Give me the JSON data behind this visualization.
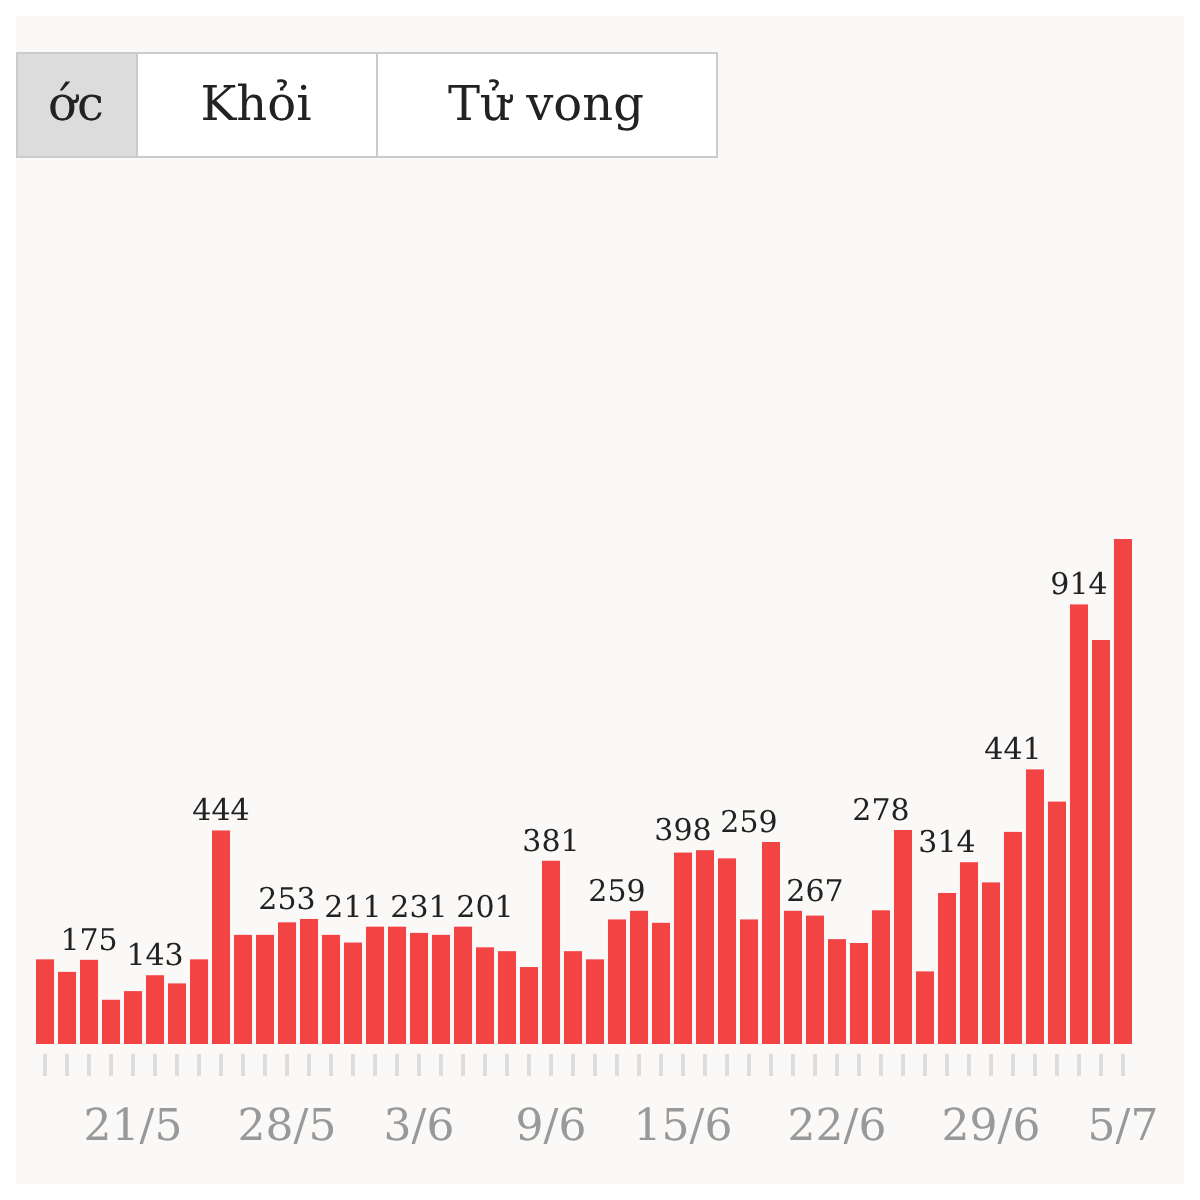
{
  "chart_data": {
    "type": "bar",
    "annotations": [
      "ớc",
      "Khỏi",
      "Tử vong"
    ],
    "categories": [
      null,
      null,
      null,
      null,
      "21/5",
      null,
      null,
      null,
      null,
      null,
      null,
      "28/5",
      null,
      null,
      null,
      null,
      null,
      "3/6",
      null,
      null,
      null,
      null,
      null,
      "9/6",
      null,
      null,
      null,
      null,
      null,
      "15/6",
      null,
      null,
      null,
      null,
      null,
      null,
      "22/6",
      null,
      null,
      null,
      null,
      null,
      null,
      "29/6",
      null,
      null,
      null,
      null,
      null,
      "5/7"
    ],
    "values": [
      176,
      150,
      175,
      92,
      110,
      143,
      126,
      176,
      444,
      227,
      227,
      253,
      260,
      227,
      211,
      244,
      244,
      231,
      227,
      244,
      201,
      193,
      160,
      381,
      193,
      176,
      259,
      277,
      252,
      398,
      403,
      386,
      259,
      420,
      277,
      267,
      218,
      210,
      278,
      445,
      151,
      314,
      378,
      336,
      441,
      571,
      504,
      914,
      840,
      1050
    ],
    "value_labels": [
      null,
      null,
      "175",
      null,
      null,
      "143",
      null,
      null,
      "444",
      null,
      null,
      "253",
      null,
      null,
      "211",
      null,
      null,
      "231",
      null,
      null,
      "201",
      null,
      null,
      "381",
      null,
      null,
      "259",
      null,
      null,
      "398",
      null,
      null,
      "259",
      null,
      null,
      "267",
      null,
      null,
      "278",
      null,
      null,
      "314",
      null,
      null,
      "441",
      null,
      null,
      "914",
      null,
      null
    ],
    "color": "#f24444"
  }
}
